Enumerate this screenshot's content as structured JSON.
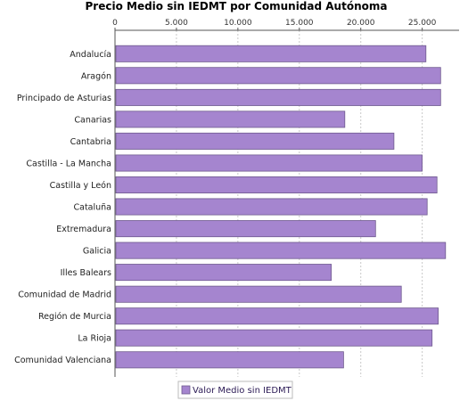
{
  "chart_data": {
    "type": "bar",
    "orientation": "horizontal",
    "title": "Precio Medio sin IEDMT por Comunidad Autónoma",
    "xlabel": "",
    "ylabel": "",
    "xlim": [
      0,
      28000
    ],
    "x_ticks": [
      0,
      5000,
      10000,
      15000,
      20000,
      25000
    ],
    "x_tick_labels": [
      "0",
      "5.000",
      "10.000",
      "15.000",
      "20.000",
      "25.000"
    ],
    "axis_position": "top",
    "grid": true,
    "legend_position": "bottom-center",
    "bar_color": "#a585cf",
    "bar_edge_color": "#6f5a8e",
    "categories": [
      "Andalucía",
      "Aragón",
      "Principado de Asturias",
      "Canarias",
      "Cantabria",
      "Castilla - La Mancha",
      "Castilla y León",
      "Cataluña",
      "Extremadura",
      "Galicia",
      "Illes Balears",
      "Comunidad de Madrid",
      "Región de Murcia",
      "La Rioja",
      "Comunidad Valenciana"
    ],
    "series": [
      {
        "name": "Valor Medio sin IEDMT",
        "values": [
          25300,
          26500,
          26500,
          18700,
          22700,
          25000,
          26200,
          25400,
          21200,
          26900,
          17600,
          23300,
          26300,
          25800,
          18600
        ]
      }
    ]
  }
}
